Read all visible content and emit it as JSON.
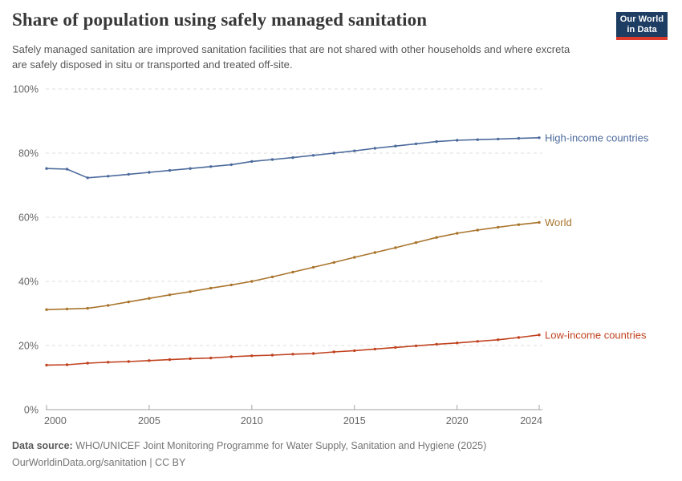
{
  "header": {
    "title": "Share of population using safely managed sanitation",
    "subtitle": "Safely managed sanitation are improved sanitation facilities that are not shared with other households and where excreta are safely disposed in situ or transported and treated off-site.",
    "logo": {
      "line1": "Our World",
      "line2": "in Data",
      "bg_color": "#1d3d63",
      "accent_color": "#dc3a2b"
    }
  },
  "chart_data": {
    "type": "line",
    "title": "Share of population using safely managed sanitation",
    "xlabel": "",
    "ylabel": "",
    "ylim": [
      0,
      100
    ],
    "yticks": [
      0,
      20,
      40,
      60,
      80,
      100
    ],
    "ytick_suffix": "%",
    "xticks": [
      2000,
      2005,
      2010,
      2015,
      2020,
      2024
    ],
    "grid": "horizontal-dashed",
    "legend_position": "right-end-of-line",
    "x": [
      2000,
      2001,
      2002,
      2003,
      2004,
      2005,
      2006,
      2007,
      2008,
      2009,
      2010,
      2011,
      2012,
      2013,
      2014,
      2015,
      2016,
      2017,
      2018,
      2019,
      2020,
      2021,
      2022,
      2023,
      2024
    ],
    "series": [
      {
        "name": "High-income countries",
        "color": "#4c6a9c",
        "values": [
          75.2,
          75.0,
          72.3,
          72.8,
          73.4,
          74.0,
          74.6,
          75.2,
          75.8,
          76.4,
          77.4,
          78.0,
          78.6,
          79.3,
          80.0,
          80.7,
          81.5,
          82.2,
          82.9,
          83.6,
          84.0,
          84.2,
          84.4,
          84.6,
          84.8
        ]
      },
      {
        "name": "World",
        "color": "#a9742c",
        "values": [
          31.2,
          31.4,
          31.6,
          32.5,
          33.6,
          34.7,
          35.8,
          36.8,
          37.9,
          38.9,
          40.0,
          41.4,
          42.9,
          44.4,
          45.9,
          47.5,
          49.0,
          50.5,
          52.1,
          53.7,
          55.0,
          56.0,
          56.9,
          57.7,
          58.4
        ]
      },
      {
        "name": "Low-income countries",
        "color": "#c0421f",
        "values": [
          13.9,
          14.0,
          14.5,
          14.8,
          15.0,
          15.3,
          15.6,
          15.9,
          16.1,
          16.5,
          16.8,
          17.0,
          17.3,
          17.5,
          18.0,
          18.4,
          18.9,
          19.4,
          19.9,
          20.4,
          20.8,
          21.3,
          21.8,
          22.5,
          23.3
        ]
      }
    ]
  },
  "footer": {
    "data_source_label": "Data source:",
    "data_source_text": "WHO/UNICEF Joint Monitoring Programme for Water Supply, Sanitation and Hygiene (2025)",
    "license_line": "OurWorldinData.org/sanitation | CC BY"
  }
}
